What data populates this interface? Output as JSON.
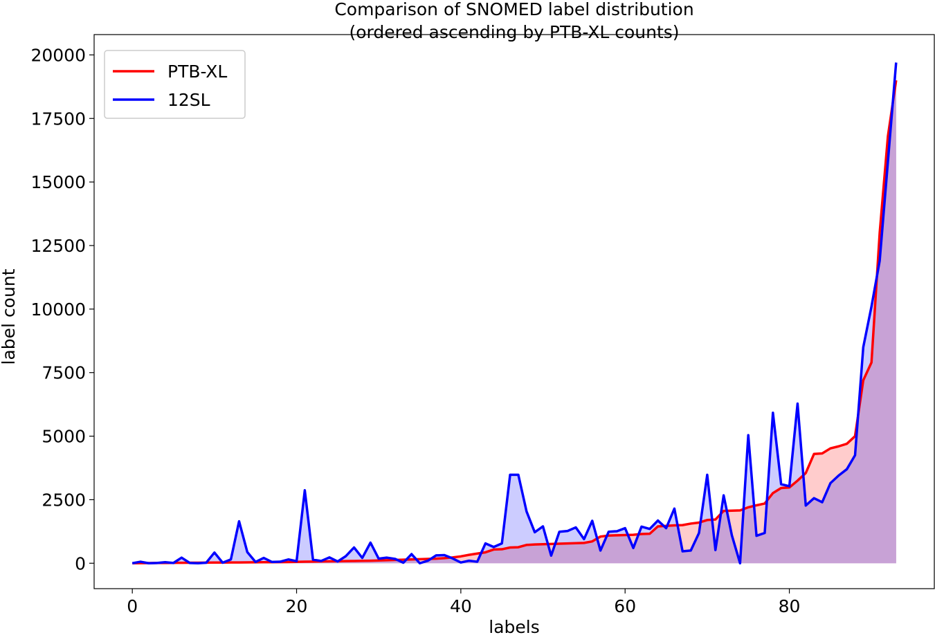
{
  "chart_data": {
    "type": "line",
    "title_line1": "Comparison of SNOMED label distribution",
    "title_line2": "(ordered ascending by PTB-XL counts)",
    "xlabel": "labels",
    "ylabel": "label count",
    "xlim": [
      -4.65,
      97.65
    ],
    "ylim": [
      -1000,
      20800
    ],
    "xticks": [
      0,
      20,
      40,
      60,
      80
    ],
    "yticks": [
      0,
      2500,
      5000,
      7500,
      10000,
      12500,
      15000,
      17500,
      20000
    ],
    "legend_position": "upper-left",
    "colors": {
      "ptbxl": "#ff0000",
      "sl12": "#0000ff",
      "fill_ptbxl": "#ffcccc",
      "fill_sl12": "#ccccff",
      "overlap": "#c8a2d6"
    },
    "series": [
      {
        "name": "PTB-XL",
        "key": "ptbxl",
        "values": [
          0,
          5,
          8,
          10,
          12,
          15,
          18,
          20,
          22,
          24,
          26,
          28,
          30,
          32,
          35,
          38,
          40,
          42,
          45,
          48,
          55,
          60,
          65,
          70,
          75,
          80,
          85,
          90,
          95,
          100,
          110,
          120,
          130,
          140,
          150,
          160,
          170,
          180,
          200,
          230,
          270,
          330,
          380,
          430,
          540,
          550,
          620,
          630,
          720,
          740,
          750,
          760,
          770,
          780,
          790,
          800,
          860,
          1050,
          1090,
          1100,
          1110,
          1120,
          1150,
          1160,
          1450,
          1470,
          1490,
          1500,
          1560,
          1600,
          1700,
          1720,
          2060,
          2070,
          2080,
          2200,
          2280,
          2350,
          2760,
          2960,
          2980,
          3250,
          3550,
          4300,
          4320,
          4520,
          4600,
          4700,
          5000,
          7200,
          7900,
          13000,
          16800,
          19000
        ]
      },
      {
        "name": "12SL",
        "key": "sl12",
        "values": [
          0,
          60,
          0,
          10,
          40,
          10,
          220,
          10,
          0,
          20,
          420,
          20,
          150,
          1650,
          440,
          50,
          210,
          50,
          60,
          150,
          80,
          2870,
          140,
          90,
          230,
          70,
          280,
          620,
          210,
          810,
          180,
          220,
          170,
          20,
          360,
          0,
          100,
          310,
          320,
          190,
          30,
          100,
          60,
          780,
          640,
          780,
          3480,
          3480,
          2040,
          1220,
          1450,
          300,
          1240,
          1270,
          1410,
          950,
          1670,
          500,
          1240,
          1260,
          1380,
          600,
          1440,
          1350,
          1680,
          1380,
          2150,
          470,
          500,
          1190,
          3480,
          520,
          2670,
          1100,
          0,
          5040,
          1080,
          1190,
          5920,
          3110,
          3030,
          6280,
          2270,
          2560,
          2400,
          3150,
          3450,
          3700,
          4250,
          8500,
          10100,
          11900,
          15800,
          19700
        ]
      }
    ]
  }
}
